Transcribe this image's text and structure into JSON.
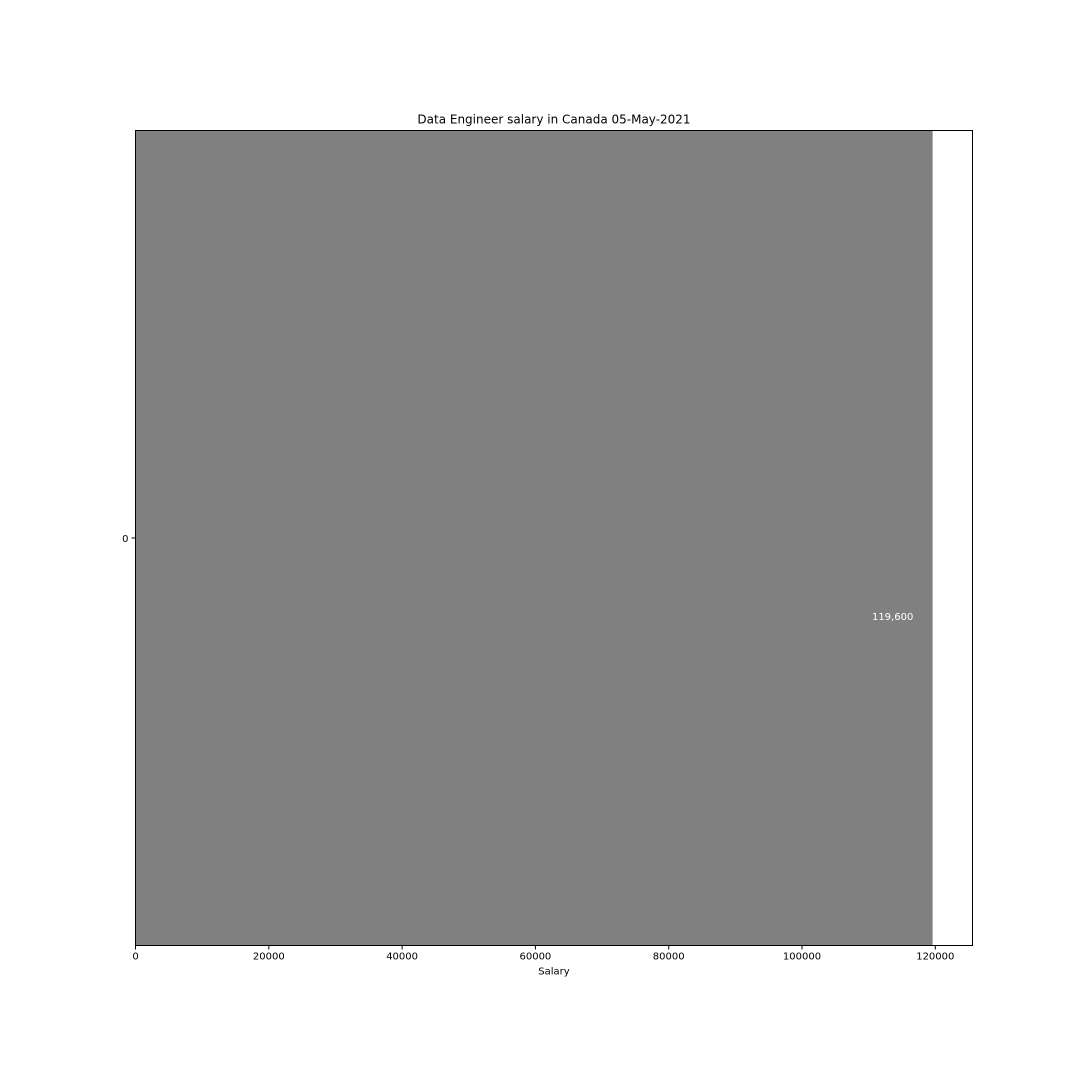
{
  "chart_data": {
    "type": "bar",
    "orientation": "horizontal",
    "title": "Data Engineer salary in Canada 05-May-2021",
    "xlabel": "Salary",
    "ylabel": "",
    "categories": [
      "0"
    ],
    "values": [
      119600
    ],
    "data_labels": [
      "119,600"
    ],
    "xlim": [
      0,
      125580
    ],
    "xticks": [
      0,
      20000,
      40000,
      60000,
      80000,
      100000,
      120000
    ],
    "grid": false,
    "legend": "none",
    "bar_color": "#808080",
    "data_label_color": "#ffffff"
  }
}
